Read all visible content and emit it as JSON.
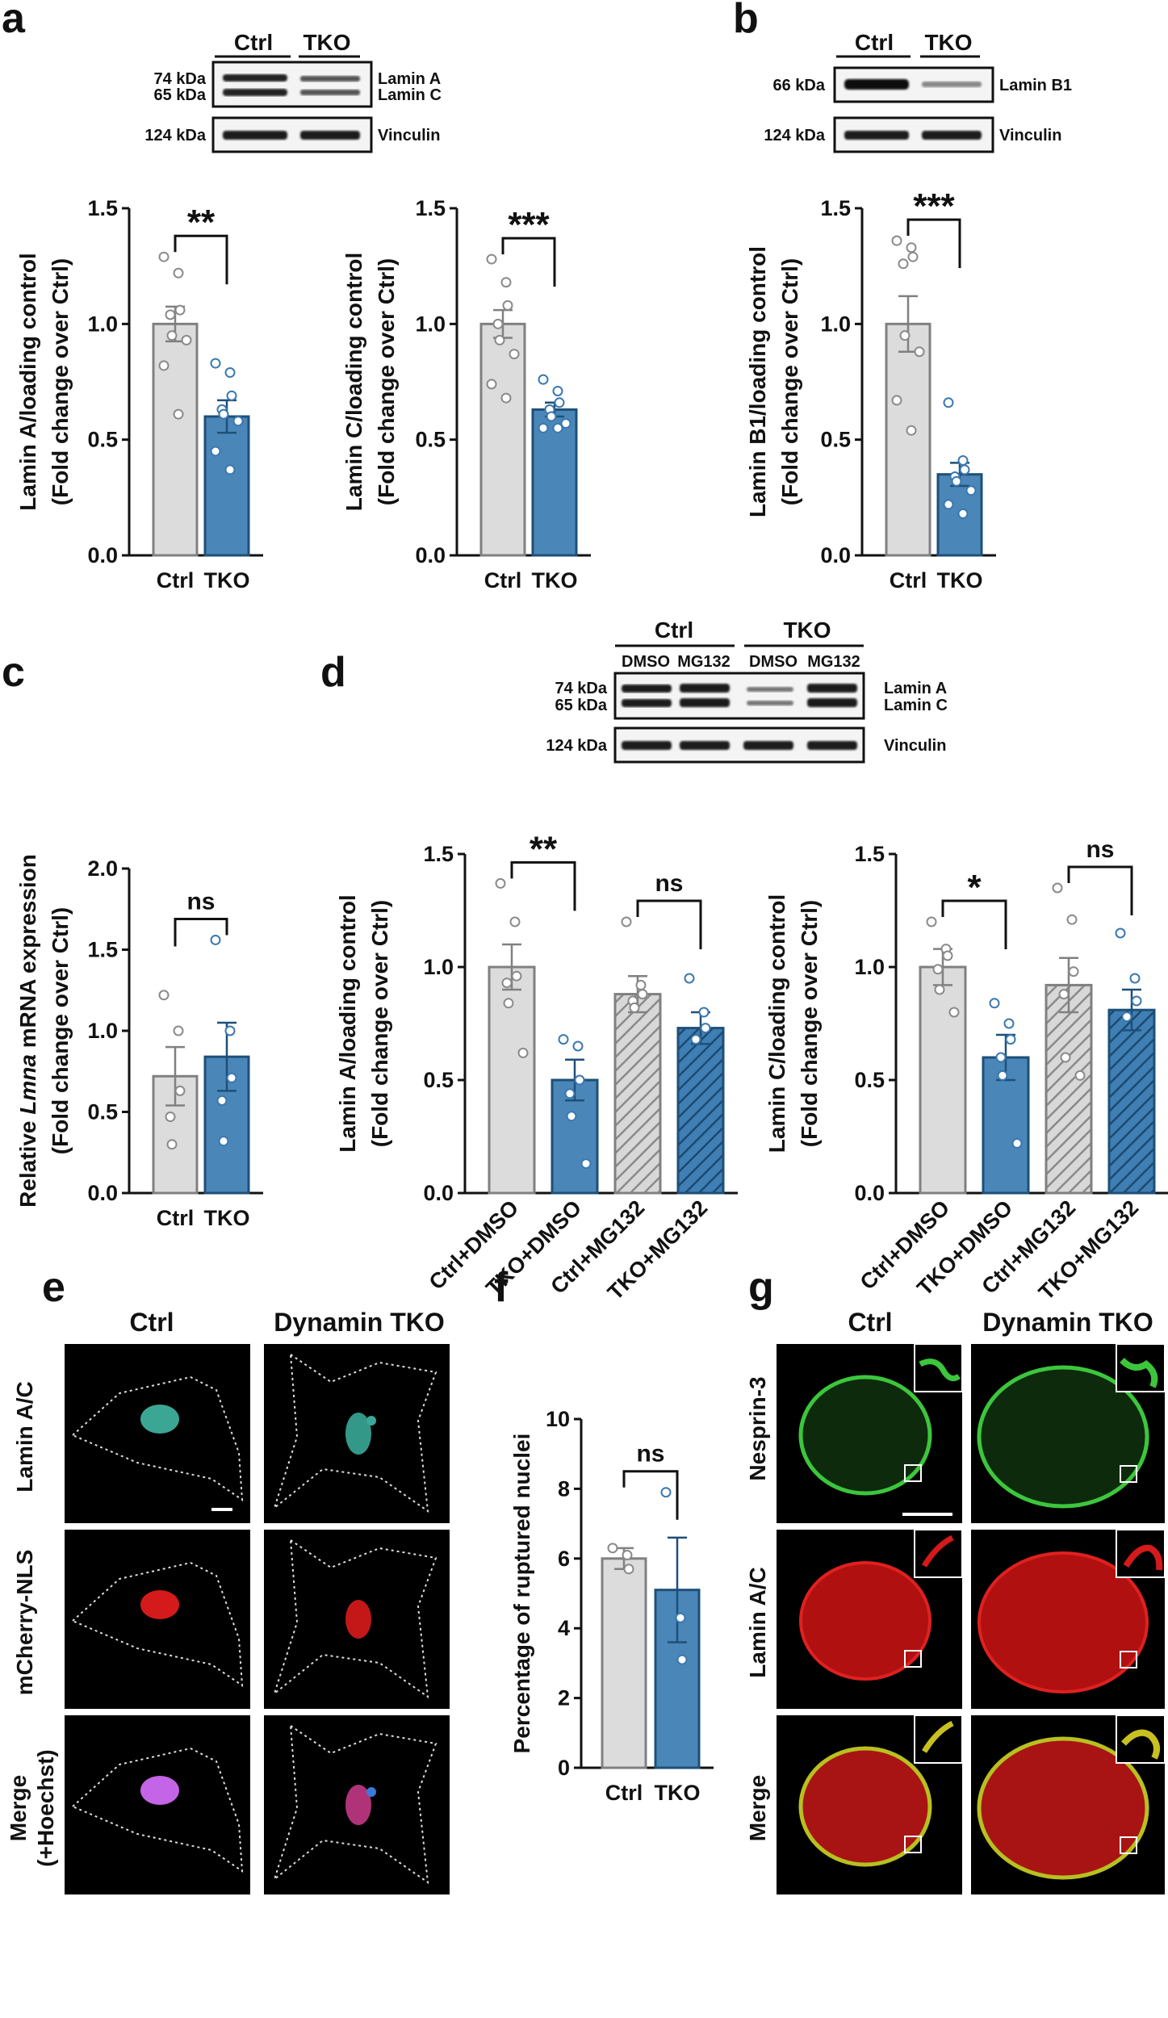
{
  "colors": {
    "ctrl_fill": "#dcdcdc",
    "ctrl_stroke": "#808080",
    "tko_fill": "#4a87b8",
    "tko_stroke": "#1e4f78",
    "point_ctrl": "#8a8a8a",
    "point_tko": "#3a78b0",
    "lamin_ac_cyan": "#3bb3a0",
    "mcherry_red": "#d41a1a",
    "merge_magenta": "#c060e0",
    "nesprin_green": "#3cc63c",
    "lamin_red": "#c81e1e"
  },
  "panels": {
    "a": "a",
    "b": "b",
    "c": "c",
    "d": "d",
    "e": "e",
    "f": "f",
    "g": "g"
  },
  "blots": {
    "a": {
      "lanes": [
        "Ctrl",
        "TKO"
      ],
      "rows": [
        {
          "kda": [
            "74 kDa",
            "65 kDa"
          ],
          "labels": [
            "Lamin A",
            "Lamin C"
          ]
        },
        {
          "kda": [
            "124 kDa"
          ],
          "labels": [
            "Vinculin"
          ]
        }
      ]
    },
    "b": {
      "lanes": [
        "Ctrl",
        "TKO"
      ],
      "rows": [
        {
          "kda": [
            "66 kDa"
          ],
          "labels": [
            "Lamin B1"
          ]
        },
        {
          "kda": [
            "124 kDa"
          ],
          "labels": [
            "Vinculin"
          ]
        }
      ]
    },
    "d": {
      "groups": [
        "Ctrl",
        "TKO"
      ],
      "lanes": [
        "DMSO",
        "MG132",
        "DMSO",
        "MG132"
      ],
      "rows": [
        {
          "kda": [
            "74 kDa",
            "65 kDa"
          ],
          "labels": [
            "Lamin A",
            "Lamin C"
          ]
        },
        {
          "kda": [
            "124 kDa"
          ],
          "labels": [
            "Vinculin"
          ]
        }
      ]
    }
  },
  "chart_data": [
    {
      "id": "a1",
      "type": "bar",
      "categories": [
        "Ctrl",
        "TKO"
      ],
      "values": [
        1.0,
        0.6
      ],
      "errors": [
        0.075,
        0.07
      ],
      "points": [
        [
          1.29,
          1.22,
          1.06,
          1.04,
          0.95,
          0.93,
          0.82,
          0.61
        ],
        [
          0.83,
          0.79,
          0.69,
          0.63,
          0.61,
          0.58,
          0.45,
          0.37
        ]
      ],
      "ylabel": [
        "Lamin A/loading control",
        "(Fold change over Ctrl)"
      ],
      "ylim": [
        0,
        1.5
      ],
      "yticks": [
        "0.0",
        "0.5",
        "1.0",
        "1.5"
      ],
      "significance": [
        {
          "from": 0,
          "to": 1,
          "label": "**"
        }
      ]
    },
    {
      "id": "a2",
      "type": "bar",
      "categories": [
        "Ctrl",
        "TKO"
      ],
      "values": [
        1.0,
        0.63
      ],
      "errors": [
        0.06,
        0.03
      ],
      "points": [
        [
          1.28,
          1.18,
          1.08,
          1.0,
          0.93,
          0.87,
          0.74,
          0.68
        ],
        [
          0.76,
          0.71,
          0.66,
          0.63,
          0.6,
          0.57,
          0.55,
          0.55
        ]
      ],
      "ylabel": [
        "Lamin C/loading control",
        "(Fold change over Ctrl)"
      ],
      "ylim": [
        0,
        1.5
      ],
      "yticks": [
        "0.0",
        "0.5",
        "1.0",
        "1.5"
      ],
      "significance": [
        {
          "from": 0,
          "to": 1,
          "label": "***"
        }
      ]
    },
    {
      "id": "b1",
      "type": "bar",
      "categories": [
        "Ctrl",
        "TKO"
      ],
      "values": [
        1.0,
        0.35
      ],
      "errors": [
        0.12,
        0.05
      ],
      "points": [
        [
          1.36,
          1.33,
          1.29,
          1.26,
          0.95,
          0.88,
          0.67,
          0.54
        ],
        [
          0.66,
          0.41,
          0.37,
          0.34,
          0.32,
          0.28,
          0.22,
          0.18
        ]
      ],
      "ylabel": [
        "Lamin B1/loading control",
        "(Fold change over Ctrl)"
      ],
      "ylim": [
        0,
        1.5
      ],
      "yticks": [
        "0.0",
        "0.5",
        "1.0",
        "1.5"
      ],
      "significance": [
        {
          "from": 0,
          "to": 1,
          "label": "***"
        }
      ]
    },
    {
      "id": "c1",
      "type": "bar",
      "categories": [
        "Ctrl",
        "TKO"
      ],
      "values": [
        0.72,
        0.84
      ],
      "errors": [
        0.18,
        0.21
      ],
      "points": [
        [
          1.22,
          1.0,
          0.63,
          0.47,
          0.3
        ],
        [
          1.56,
          1.0,
          0.71,
          0.57,
          0.32
        ]
      ],
      "ylabel": [
        "Relative Lmna mRNA expression",
        "(Fold change over Ctrl)"
      ],
      "ylim": [
        0,
        2.0
      ],
      "yticks": [
        "0.0",
        "0.5",
        "1.0",
        "1.5",
        "2.0"
      ],
      "significance": [
        {
          "from": 0,
          "to": 1,
          "label": "ns"
        }
      ]
    },
    {
      "id": "d1",
      "type": "bar",
      "categories": [
        "Ctrl+DMSO",
        "TKO+DMSO",
        "Ctrl+MG132",
        "TKO+MG132"
      ],
      "values": [
        1.0,
        0.5,
        0.88,
        0.73
      ],
      "errors": [
        0.1,
        0.09,
        0.08,
        0.07
      ],
      "points": [
        [
          1.37,
          1.2,
          0.96,
          0.93,
          0.84,
          0.62
        ],
        [
          0.68,
          0.65,
          0.5,
          0.44,
          0.34,
          0.13
        ],
        [
          1.2,
          0.92,
          0.88,
          0.85,
          0.82
        ],
        [
          0.95,
          0.8,
          0.73,
          0.68
        ]
      ],
      "ylabel": [
        "Lamin A/loading control",
        "(Fold change over Ctrl)"
      ],
      "ylim": [
        0,
        1.5
      ],
      "yticks": [
        "0.0",
        "0.5",
        "1.0",
        "1.5"
      ],
      "significance": [
        {
          "from": 0,
          "to": 1,
          "label": "**"
        },
        {
          "from": 2,
          "to": 3,
          "label": "ns"
        }
      ]
    },
    {
      "id": "d2",
      "type": "bar",
      "categories": [
        "Ctrl+DMSO",
        "TKO+DMSO",
        "Ctrl+MG132",
        "TKO+MG132"
      ],
      "values": [
        1.0,
        0.6,
        0.92,
        0.81
      ],
      "errors": [
        0.08,
        0.1,
        0.12,
        0.09
      ],
      "points": [
        [
          1.2,
          1.08,
          1.05,
          0.99,
          0.9,
          0.8
        ],
        [
          0.84,
          0.75,
          0.68,
          0.6,
          0.52,
          0.22
        ],
        [
          1.35,
          1.21,
          0.98,
          0.88,
          0.6,
          0.52
        ],
        [
          1.15,
          0.95,
          0.85,
          0.78
        ]
      ],
      "ylabel": [
        "Lamin C/loading control",
        "(Fold change over Ctrl)"
      ],
      "ylim": [
        0,
        1.5
      ],
      "yticks": [
        "0.0",
        "0.5",
        "1.0",
        "1.5"
      ],
      "significance": [
        {
          "from": 0,
          "to": 1,
          "label": "*"
        },
        {
          "from": 2,
          "to": 3,
          "label": "ns"
        }
      ]
    },
    {
      "id": "f1",
      "type": "bar",
      "categories": [
        "Ctrl",
        "TKO"
      ],
      "values": [
        6.0,
        5.1
      ],
      "errors": [
        0.3,
        1.5
      ],
      "points": [
        [
          6.3,
          6.1,
          5.7
        ],
        [
          7.9,
          4.3,
          3.1
        ]
      ],
      "ylabel": [
        "Percentage of ruptured nuclei"
      ],
      "ylim": [
        0,
        10
      ],
      "yticks": [
        "0",
        "2",
        "4",
        "6",
        "8",
        "10"
      ],
      "significance": [
        {
          "from": 0,
          "to": 1,
          "label": "ns"
        }
      ]
    }
  ],
  "micrographs": {
    "e": {
      "columns": [
        "Ctrl",
        "Dynamin TKO"
      ],
      "rows": [
        [
          "Lamin A/C"
        ],
        [
          "mCherry-NLS"
        ],
        [
          "Merge",
          "(+Hoechst)"
        ]
      ]
    },
    "g": {
      "columns": [
        "Ctrl",
        "Dynamin TKO"
      ],
      "rows": [
        [
          "Nesprin-3"
        ],
        [
          "Lamin A/C"
        ],
        [
          "Merge"
        ]
      ]
    }
  }
}
